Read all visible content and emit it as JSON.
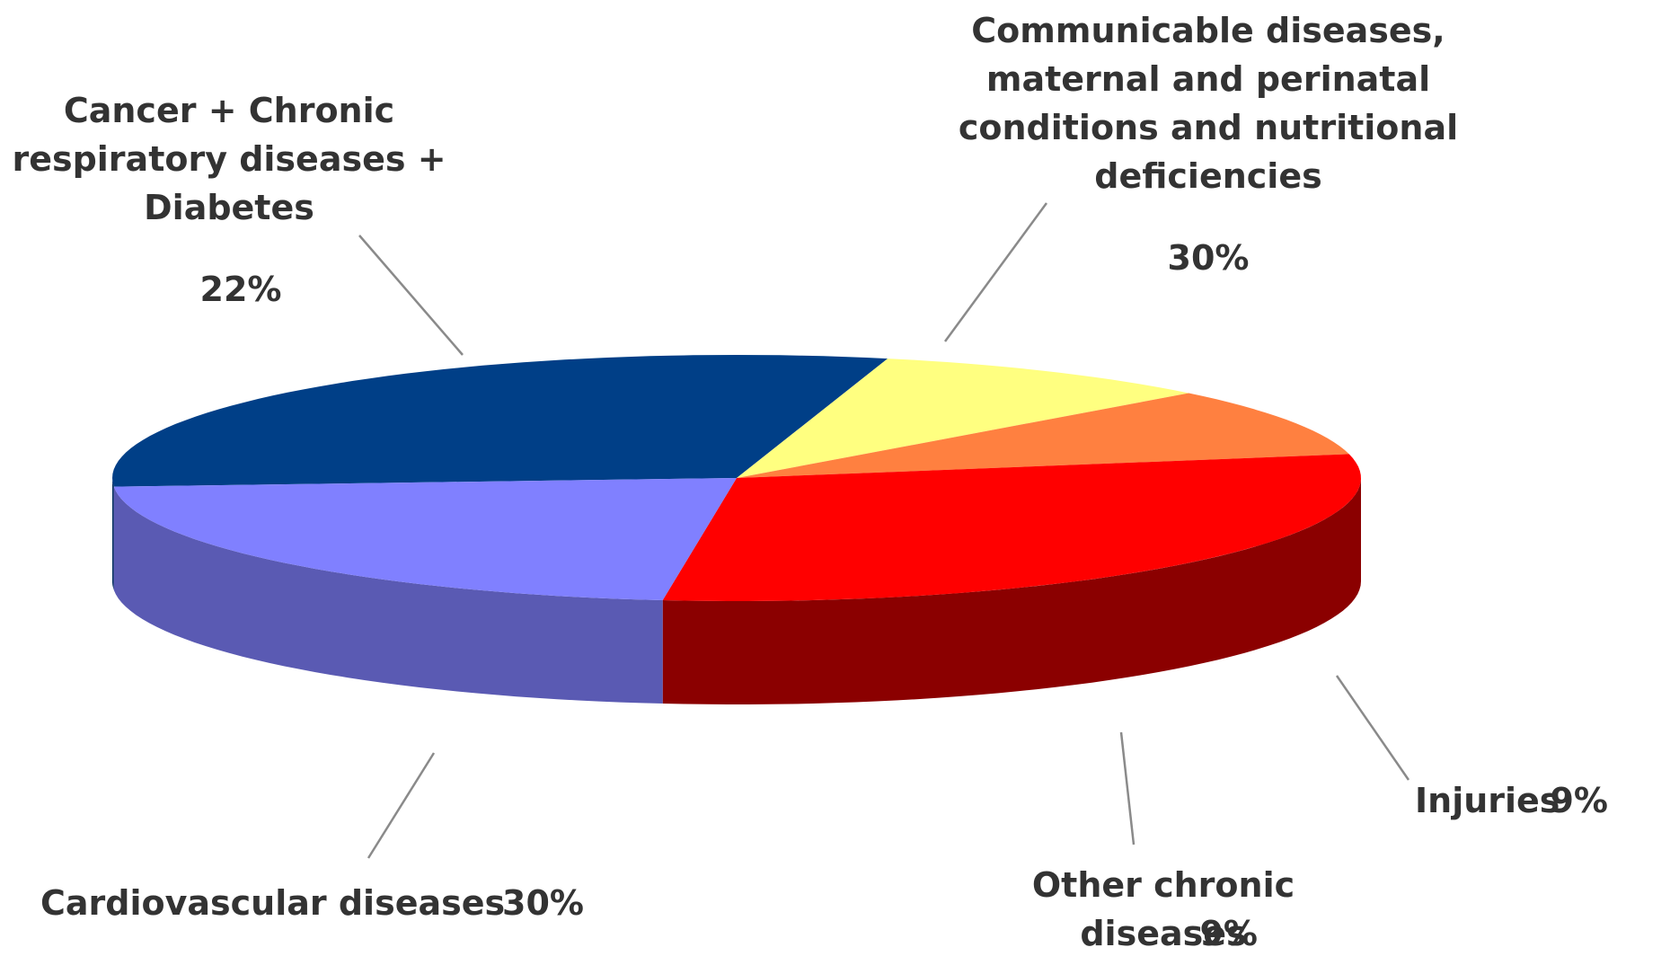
{
  "chart_data": {
    "type": "pie",
    "style": "3d",
    "slices": [
      {
        "lines": [
          "Communicable diseases,",
          "maternal and perinatal",
          "conditions and nutritional",
          "deficiencies"
        ],
        "pct_text": "30%",
        "value": 30,
        "top": "#003f87",
        "side": "#002a5c"
      },
      {
        "lines": [
          "Injuries"
        ],
        "pct_text": "9%",
        "value": 9,
        "top": "#ffff80",
        "side": "#8b8b4e"
      },
      {
        "lines": [
          "Other chronic",
          "diseases"
        ],
        "pct_text": "9%",
        "value": 9,
        "top": "#ff8040",
        "side": "#8b4500"
      },
      {
        "lines": [
          "Cardiovascular diseases"
        ],
        "pct_text": "30%",
        "value": 30,
        "top": "#ff0000",
        "side": "#8b0000"
      },
      {
        "lines": [
          "Cancer + Chronic",
          "respiratory diseases +",
          "Diabetes"
        ],
        "pct_text": "22%",
        "value": 22,
        "top": "#8080ff",
        "side": "#5a5ab3"
      }
    ]
  }
}
